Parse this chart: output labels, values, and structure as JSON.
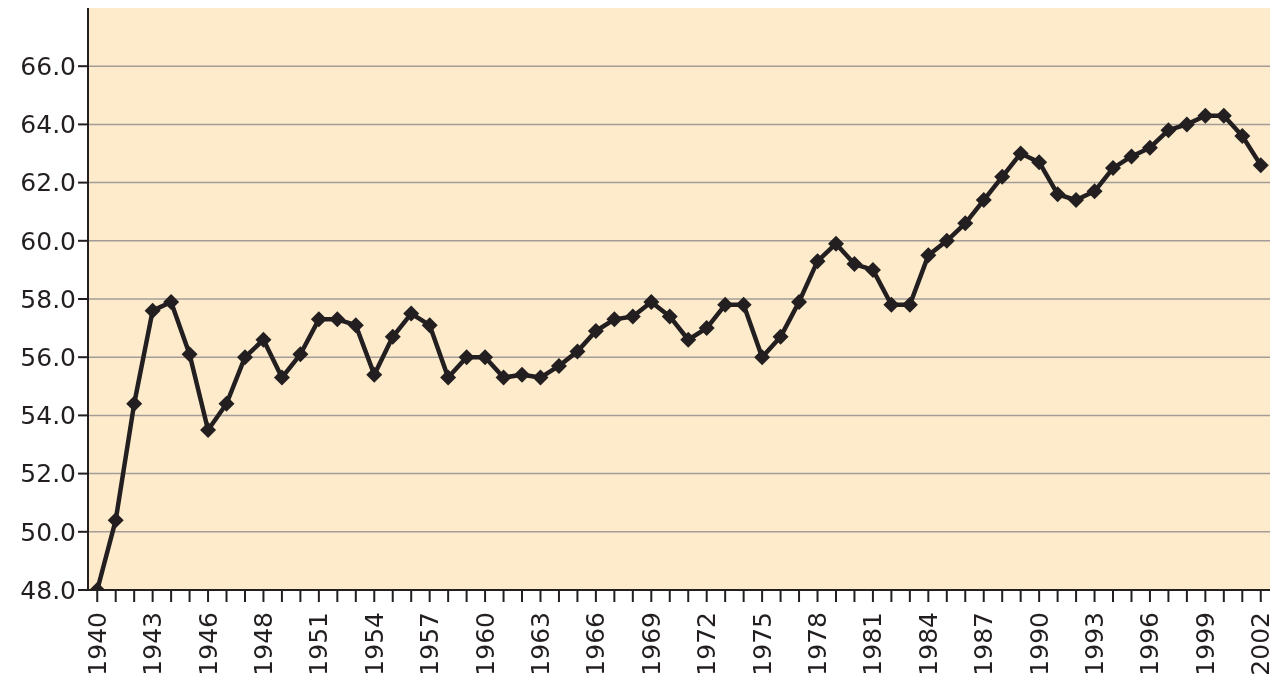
{
  "chart_data": {
    "type": "line",
    "categories": [
      "1940",
      null,
      null,
      "1943",
      null,
      null,
      "1946",
      null,
      null,
      "1948",
      null,
      null,
      "1951",
      null,
      null,
      "1954",
      null,
      null,
      "1957",
      null,
      null,
      "1960",
      null,
      null,
      "1963",
      null,
      null,
      "1966",
      null,
      null,
      "1969",
      null,
      null,
      "1972",
      null,
      null,
      "1975",
      null,
      null,
      "1978",
      null,
      null,
      "1981",
      null,
      null,
      "1984",
      null,
      null,
      "1987",
      null,
      null,
      "1990",
      null,
      null,
      "1993",
      null,
      null,
      "1996",
      null,
      null,
      "1999",
      null,
      null,
      "2002"
    ],
    "series": [
      {
        "color": "#231f20",
        "values": [
          48.0,
          50.4,
          54.4,
          57.6,
          57.9,
          56.1,
          53.5,
          54.4,
          56.0,
          56.6,
          55.3,
          56.1,
          57.3,
          57.3,
          57.1,
          55.4,
          56.7,
          57.5,
          57.1,
          55.3,
          56.0,
          56.0,
          55.3,
          55.4,
          55.3,
          55.7,
          56.2,
          56.9,
          57.3,
          57.4,
          57.9,
          57.4,
          56.6,
          57.0,
          57.8,
          57.8,
          56.0,
          56.7,
          57.9,
          59.3,
          59.9,
          59.2,
          59.0,
          57.8,
          57.8,
          59.5,
          60.0,
          60.6,
          61.4,
          62.2,
          63.0,
          62.7,
          61.6,
          61.4,
          61.7,
          62.5,
          62.9,
          63.2,
          63.8,
          64.0,
          64.3,
          64.3,
          63.6,
          62.6
        ]
      }
    ],
    "ylim": [
      48,
      68
    ],
    "yticks": [
      {
        "value": 48,
        "label": "48.0"
      },
      {
        "value": 50,
        "label": "50.0"
      },
      {
        "value": 52,
        "label": "52.0"
      },
      {
        "value": 54,
        "label": "54.0"
      },
      {
        "value": 56,
        "label": "56.0"
      },
      {
        "value": 58,
        "label": "58.0"
      },
      {
        "value": 60,
        "label": "60.0"
      },
      {
        "value": 62,
        "label": "62.0"
      },
      {
        "value": 64,
        "label": "64.0"
      },
      {
        "value": 66,
        "label": "66.0"
      }
    ],
    "grid": "y",
    "marker": "diamond",
    "line_style": "solid",
    "legend": false
  }
}
